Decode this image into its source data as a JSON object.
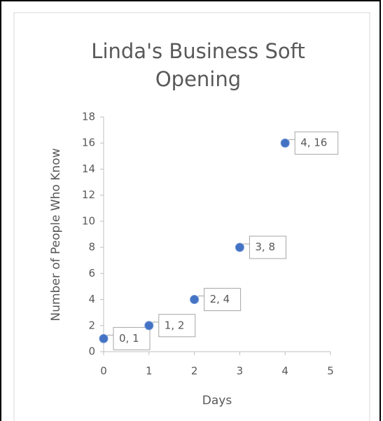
{
  "chart_data": {
    "type": "scatter",
    "title_lines": [
      "Linda's Business Soft",
      "Opening"
    ],
    "x_label": "Days",
    "y_label": "Number of People Who Know",
    "series": [
      {
        "color": "#4472c4",
        "x": [
          0,
          1,
          2,
          3,
          4
        ],
        "values": [
          1,
          2,
          4,
          8,
          16
        ],
        "value_labels": [
          "0, 1",
          "1, 2",
          "2, 4",
          "3, 8",
          "4, 16"
        ]
      }
    ],
    "xlim": [
      0,
      5
    ],
    "xticks": [
      0,
      1,
      2,
      3,
      4,
      5
    ],
    "ylim": [
      0,
      18
    ],
    "yticks": [
      0,
      2,
      4,
      6,
      8,
      10,
      12,
      14,
      16,
      18
    ]
  }
}
